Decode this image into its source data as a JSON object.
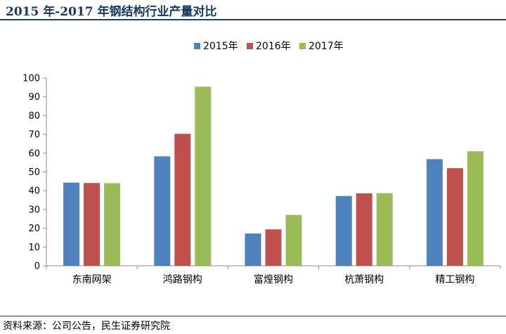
{
  "header": {
    "title": "2015 年-2017 年钢结构行业产量对比"
  },
  "footer": {
    "source": "资料来源：公司公告，民生证券研究院"
  },
  "chart_data": {
    "type": "bar",
    "title": "",
    "xlabel": "",
    "ylabel": "",
    "categories": [
      "东南网架",
      "鸿路钢构",
      "富煌钢构",
      "杭萧钢构",
      "精工钢构"
    ],
    "series": [
      {
        "name": "2015年",
        "color": "#4f81bd",
        "values": [
          44.3,
          58.3,
          17.2,
          37.2,
          56.8
        ]
      },
      {
        "name": "2016年",
        "color": "#c0504d",
        "values": [
          44.1,
          70.3,
          19.4,
          38.6,
          52.0
        ]
      },
      {
        "name": "2017年",
        "color": "#9bbb59",
        "values": [
          44.0,
          95.4,
          27.1,
          38.7,
          61.0
        ]
      }
    ],
    "ylim": [
      0,
      100
    ],
    "yticks": [
      0,
      10,
      20,
      30,
      40,
      50,
      60,
      70,
      80,
      90,
      100
    ],
    "grid": false,
    "legend": "top-center"
  }
}
